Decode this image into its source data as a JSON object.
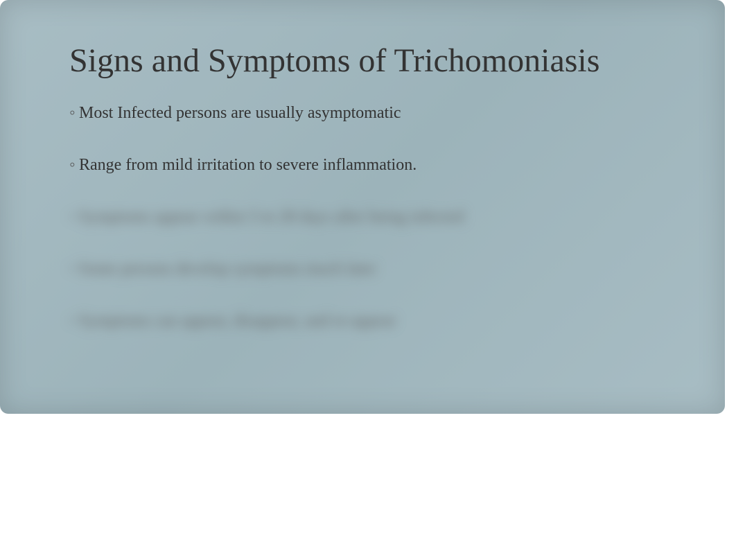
{
  "slide": {
    "title": "Signs and Symptoms of Trichomoniasis",
    "bullets": [
      {
        "text": "Most Infected persons are usually asymptomatic",
        "blurred": false
      },
      {
        "text": "Range from mild irritation to severe inflammation.",
        "blurred": false
      },
      {
        "text": "Symptoms appear within 5 to 28 days after being infected",
        "blurred": true
      },
      {
        "text": "Some persons develop symptoms much later",
        "blurred": true
      },
      {
        "text": "Symptoms can appear, disappear, and re-appear",
        "blurred": true
      }
    ],
    "styling": {
      "background_gradient": [
        "#a8bdc4",
        "#9cb3ba",
        "#a8bdc4"
      ],
      "title_color": "#333333",
      "title_fontsize": 48,
      "body_color": "#333333",
      "body_fontsize": 24,
      "blurred_color": "#666666",
      "blur_amount": 8,
      "bullet_marker": "◦",
      "slide_width": 1046,
      "slide_height": 597,
      "border_radius": 12
    }
  }
}
